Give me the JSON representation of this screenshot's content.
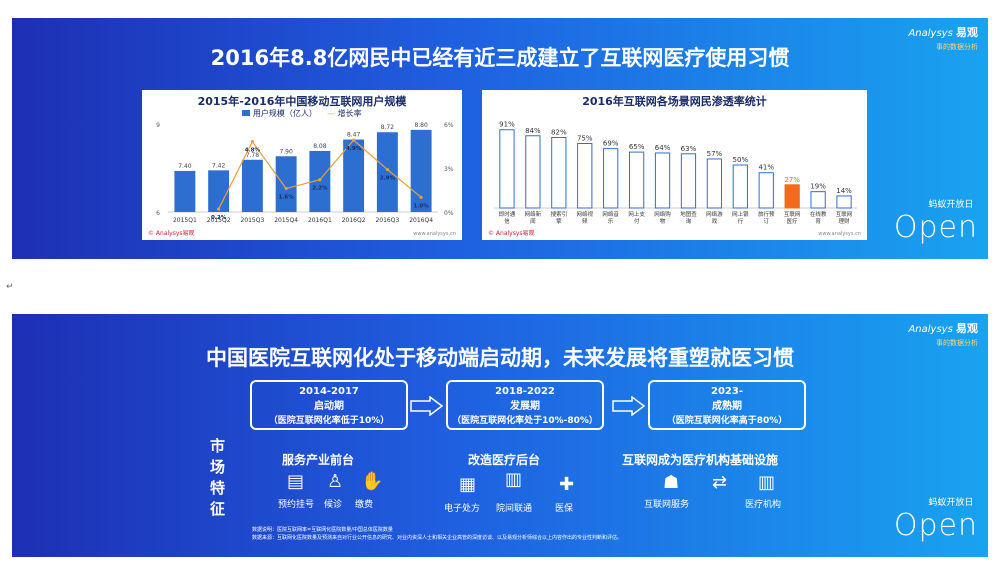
{
  "slide1": {
    "title": "2016年8.8亿网民中已经有近三成建立了互联网医疗使用习惯",
    "brand_en": "Analysys",
    "brand_cn": "易观",
    "brand_sub": "事的数据分析",
    "open_small": "蚂蚁开放日",
    "open_big": "Open",
    "foot_left": "© Analysys易观",
    "foot_right": "www.analysys.cn",
    "foot_left2": "© Analysys易观",
    "foot_right2": "www.analysys.cn"
  },
  "slide2": {
    "title": "中国医院互联网化处于移动端启动期，未来发展将重塑就医习惯",
    "brand_en": "Analysys",
    "brand_cn": "易观",
    "brand_sub": "事的数据分析",
    "open_small": "蚂蚁开放日",
    "open_big": "Open",
    "stages": [
      {
        "years": "2014-2017",
        "name": "启动期",
        "desc": "（医院互联网化率低于10%）"
      },
      {
        "years": "2018-2022",
        "name": "发展期",
        "desc": "（医院互联网化率处于10%-80%）"
      },
      {
        "years": "2023-",
        "name": "成熟期",
        "desc": "（医院互联网化率高于80%）"
      }
    ],
    "market_label": [
      "市",
      "场",
      "特",
      "征"
    ],
    "features": [
      "服务产业前台",
      "改造医疗后台",
      "互联网成为医疗机构基础设施"
    ],
    "front_items": [
      "预约挂号",
      "候诊",
      "缴费"
    ],
    "back_items": [
      "电子处方",
      "院间联通",
      "医保"
    ],
    "infra_items": [
      "互联网服务",
      "医疗机构"
    ],
    "note1": "数据说明：医院互联网率=互联网化医院数量/中国总体医院数量",
    "note2": "数据来源：互联网化医院数量及预测来自对行业公开信息的研究、对业内资深人士和相关企业高管的深度访谈、以及易观分析师综合以上内容作出的专业性判断和评估。"
  },
  "chart_data": [
    {
      "type": "bar",
      "title": "2015年-2016年中国移动互联网用户规模",
      "legend": [
        "用户规模（亿人）",
        "增长率"
      ],
      "categories": [
        "2015Q1",
        "2015Q2",
        "2015Q3",
        "2015Q4",
        "2016Q1",
        "2016Q2",
        "2016Q3",
        "2016Q4"
      ],
      "series": [
        {
          "name": "用户规模（亿人）",
          "type": "bar",
          "values": [
            7.4,
            7.42,
            7.78,
            7.9,
            8.08,
            8.47,
            8.72,
            8.8
          ]
        },
        {
          "name": "增长率",
          "type": "line",
          "values": [
            null,
            0.2,
            4.8,
            1.6,
            2.2,
            4.9,
            2.9,
            1.0
          ],
          "labels": [
            "",
            "0.2%",
            "4.8%",
            "1.6%",
            "2.2%",
            "4.9%",
            "2.9%",
            "1.0%"
          ]
        }
      ],
      "ylim": [
        6,
        9
      ],
      "yticks": [
        "6",
        "9"
      ],
      "y2lim": [
        0,
        6
      ],
      "y2ticks": [
        "0%",
        "3%",
        "6%"
      ],
      "bar_color": "#2c6fd0",
      "line_color": "#e8a13a"
    },
    {
      "type": "bar",
      "title": "2016年互联网各场景网民渗透率统计",
      "categories": [
        [
          "即时通",
          "信"
        ],
        [
          "网络新",
          "闻"
        ],
        [
          "搜索引",
          "擎"
        ],
        [
          "网络视",
          "频"
        ],
        [
          "网络音",
          "乐"
        ],
        [
          "网上支",
          "付"
        ],
        [
          "网络购",
          "物"
        ],
        [
          "地图查",
          "询"
        ],
        [
          "网络游",
          "戏"
        ],
        [
          "网上银",
          "行"
        ],
        [
          "旅行预",
          "订"
        ],
        [
          "互联网",
          "医疗"
        ],
        [
          "在线教",
          "育"
        ],
        [
          "互联网",
          "理财"
        ]
      ],
      "values": [
        91,
        84,
        82,
        75,
        69,
        65,
        64,
        63,
        57,
        50,
        41,
        27,
        19,
        14
      ],
      "labels": [
        "91%",
        "84%",
        "82%",
        "75%",
        "69%",
        "65%",
        "64%",
        "63%",
        "57%",
        "50%",
        "41%",
        "27%",
        "19%",
        "14%"
      ],
      "highlight_index": 11,
      "bar_color": "#ffffff",
      "bar_stroke": "#2c6fd0",
      "highlight_color": "#f26b1d",
      "ylim": [
        0,
        100
      ]
    }
  ]
}
